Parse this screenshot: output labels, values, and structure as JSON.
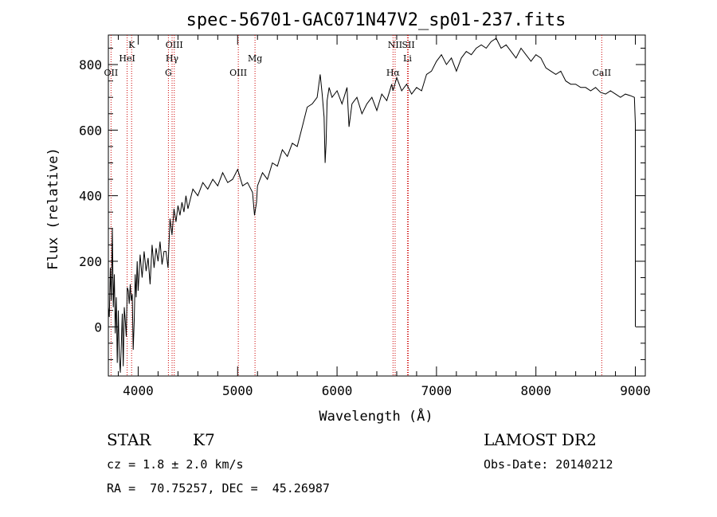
{
  "chart_data": {
    "type": "line",
    "title": "spec-56701-GAC071N47V2_sp01-237.fits",
    "xlabel": "Wavelength (Å)",
    "ylabel": "Flux (relative)",
    "xlim": [
      3700,
      9100
    ],
    "ylim": [
      -150,
      890
    ],
    "xticks": [
      4000,
      5000,
      6000,
      7000,
      8000,
      9000
    ],
    "yticks": [
      0,
      200,
      400,
      600,
      800
    ],
    "line_color": "#000000",
    "marker_color": "#cc0000",
    "series": [
      {
        "values": [
          [
            3700,
            60
          ],
          [
            3710,
            30
          ],
          [
            3720,
            180
          ],
          [
            3730,
            80
          ],
          [
            3740,
            300
          ],
          [
            3750,
            60
          ],
          [
            3760,
            160
          ],
          [
            3770,
            -20
          ],
          [
            3780,
            90
          ],
          [
            3790,
            -110
          ],
          [
            3800,
            50
          ],
          [
            3810,
            -90
          ],
          [
            3820,
            -140
          ],
          [
            3830,
            -60
          ],
          [
            3840,
            40
          ],
          [
            3850,
            -120
          ],
          [
            3860,
            60
          ],
          [
            3870,
            20
          ],
          [
            3880,
            -30
          ],
          [
            3890,
            120
          ],
          [
            3900,
            110
          ],
          [
            3910,
            70
          ],
          [
            3920,
            130
          ],
          [
            3930,
            80
          ],
          [
            3940,
            100
          ],
          [
            3950,
            -70
          ],
          [
            3960,
            20
          ],
          [
            3970,
            160
          ],
          [
            3980,
            90
          ],
          [
            3990,
            200
          ],
          [
            4000,
            110
          ],
          [
            4020,
            220
          ],
          [
            4040,
            150
          ],
          [
            4060,
            230
          ],
          [
            4080,
            170
          ],
          [
            4100,
            210
          ],
          [
            4120,
            130
          ],
          [
            4140,
            250
          ],
          [
            4160,
            180
          ],
          [
            4180,
            240
          ],
          [
            4200,
            200
          ],
          [
            4220,
            260
          ],
          [
            4240,
            190
          ],
          [
            4260,
            230
          ],
          [
            4280,
            230
          ],
          [
            4300,
            180
          ],
          [
            4320,
            330
          ],
          [
            4340,
            280
          ],
          [
            4360,
            360
          ],
          [
            4380,
            320
          ],
          [
            4400,
            370
          ],
          [
            4420,
            340
          ],
          [
            4440,
            380
          ],
          [
            4460,
            350
          ],
          [
            4480,
            400
          ],
          [
            4500,
            360
          ],
          [
            4550,
            420
          ],
          [
            4600,
            400
          ],
          [
            4650,
            440
          ],
          [
            4700,
            420
          ],
          [
            4750,
            450
          ],
          [
            4800,
            430
          ],
          [
            4850,
            470
          ],
          [
            4900,
            440
          ],
          [
            4950,
            450
          ],
          [
            5000,
            480
          ],
          [
            5050,
            430
          ],
          [
            5100,
            440
          ],
          [
            5150,
            410
          ],
          [
            5170,
            340
          ],
          [
            5190,
            380
          ],
          [
            5200,
            430
          ],
          [
            5250,
            470
          ],
          [
            5300,
            450
          ],
          [
            5350,
            500
          ],
          [
            5400,
            490
          ],
          [
            5450,
            540
          ],
          [
            5500,
            520
          ],
          [
            5550,
            560
          ],
          [
            5600,
            550
          ],
          [
            5650,
            610
          ],
          [
            5700,
            670
          ],
          [
            5750,
            680
          ],
          [
            5800,
            700
          ],
          [
            5830,
            770
          ],
          [
            5850,
            710
          ],
          [
            5870,
            640
          ],
          [
            5880,
            500
          ],
          [
            5890,
            560
          ],
          [
            5900,
            690
          ],
          [
            5920,
            730
          ],
          [
            5950,
            700
          ],
          [
            6000,
            720
          ],
          [
            6050,
            680
          ],
          [
            6100,
            730
          ],
          [
            6120,
            610
          ],
          [
            6150,
            680
          ],
          [
            6200,
            700
          ],
          [
            6250,
            650
          ],
          [
            6300,
            680
          ],
          [
            6350,
            700
          ],
          [
            6400,
            660
          ],
          [
            6450,
            710
          ],
          [
            6500,
            690
          ],
          [
            6550,
            740
          ],
          [
            6563,
            720
          ],
          [
            6600,
            760
          ],
          [
            6650,
            720
          ],
          [
            6700,
            740
          ],
          [
            6750,
            710
          ],
          [
            6800,
            730
          ],
          [
            6850,
            720
          ],
          [
            6900,
            770
          ],
          [
            6950,
            780
          ],
          [
            7000,
            810
          ],
          [
            7050,
            830
          ],
          [
            7100,
            800
          ],
          [
            7150,
            820
          ],
          [
            7200,
            780
          ],
          [
            7250,
            820
          ],
          [
            7300,
            840
          ],
          [
            7350,
            830
          ],
          [
            7400,
            850
          ],
          [
            7450,
            860
          ],
          [
            7500,
            850
          ],
          [
            7550,
            870
          ],
          [
            7600,
            880
          ],
          [
            7650,
            850
          ],
          [
            7700,
            860
          ],
          [
            7750,
            840
          ],
          [
            7800,
            820
          ],
          [
            7850,
            850
          ],
          [
            7900,
            830
          ],
          [
            7950,
            810
          ],
          [
            8000,
            830
          ],
          [
            8050,
            820
          ],
          [
            8100,
            790
          ],
          [
            8150,
            780
          ],
          [
            8200,
            770
          ],
          [
            8250,
            780
          ],
          [
            8300,
            750
          ],
          [
            8350,
            740
          ],
          [
            8400,
            740
          ],
          [
            8450,
            730
          ],
          [
            8500,
            730
          ],
          [
            8550,
            720
          ],
          [
            8600,
            730
          ],
          [
            8650,
            715
          ],
          [
            8700,
            710
          ],
          [
            8750,
            720
          ],
          [
            8800,
            710
          ],
          [
            8850,
            700
          ],
          [
            8900,
            710
          ],
          [
            8950,
            705
          ],
          [
            8990,
            700
          ],
          [
            9000,
            620
          ],
          [
            9000,
            140
          ],
          [
            9000,
            0
          ],
          [
            9000,
            200
          ]
        ]
      }
    ],
    "line_markers": [
      {
        "label": "OII",
        "wavelength": 3727,
        "row": 3
      },
      {
        "label": "K",
        "wavelength": 3934,
        "row": 0
      },
      {
        "label": "HeI",
        "wavelength": 3889,
        "row": 1
      },
      {
        "label": "OIII",
        "wavelength": 4363,
        "row": 0
      },
      {
        "label": "Hγ",
        "wavelength": 4341,
        "row": 1
      },
      {
        "label": "G",
        "wavelength": 4304,
        "row": 2
      },
      {
        "label": "OIII",
        "wavelength": 5007,
        "row": 2
      },
      {
        "label": "Mg",
        "wavelength": 5175,
        "row": 1
      },
      {
        "label": "NII",
        "wavelength": 6584,
        "row": 0
      },
      {
        "label": "Hα",
        "wavelength": 6563,
        "row": 2
      },
      {
        "label": "Li",
        "wavelength": 6708,
        "row": 1
      },
      {
        "label": "SII",
        "wavelength": 6717,
        "row": 0,
        "x_shift_label_nm": 0
      },
      {
        "label": "CaII",
        "wavelength": 8662,
        "row": 2
      }
    ]
  },
  "info": {
    "object_class": "STAR",
    "subclass": "K7",
    "survey": "LAMOST DR2",
    "cz": "cz = 1.8 ± 2.0 km/s",
    "obs_date": "Obs-Date: 20140212",
    "coords": "RA =  70.75257, DEC =  45.26987"
  }
}
